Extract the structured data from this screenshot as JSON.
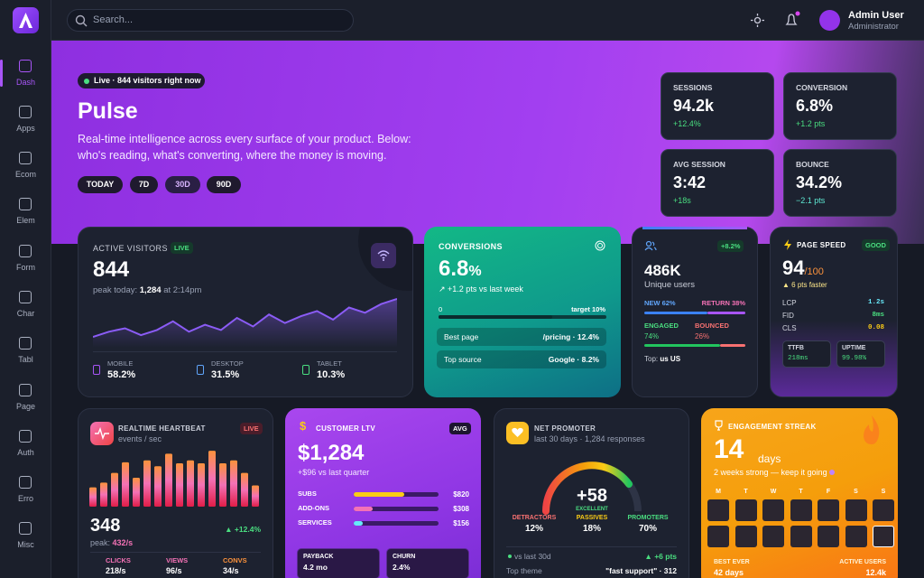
{
  "search": {
    "placeholder": "Search..."
  },
  "user": {
    "name": "Admin User",
    "role": "Administrator"
  },
  "nav": [
    "Dash",
    "Apps",
    "Ecom",
    "Elem",
    "Form",
    "Char",
    "Tabl",
    "Page",
    "Auth",
    "Erro",
    "Misc"
  ],
  "hero": {
    "live": "Live · 844 visitors right now",
    "title": "Pulse",
    "description": "Real-time intelligence across every surface of your product. Below: who's reading, what's converting, where the money is moving.",
    "ranges": [
      "TODAY",
      "7D",
      "30D",
      "90D"
    ]
  },
  "stats": [
    {
      "label": "SESSIONS",
      "value": "94.2k",
      "delta": "+12.4%"
    },
    {
      "label": "CONVERSION",
      "value": "6.8%",
      "delta": "+1.2 pts"
    },
    {
      "label": "AVG SESSION",
      "value": "3:42",
      "delta": "+18s"
    },
    {
      "label": "BOUNCE",
      "value": "34.2%",
      "delta": "−2.1 pts"
    }
  ],
  "active_visitors": {
    "title": "ACTIVE VISITORS",
    "badge": "LIVE",
    "value": "844",
    "peak_label": "peak today:",
    "peak": "1,284",
    "peak_time": "at 2:14pm",
    "trend": [
      8,
      11,
      13,
      9,
      12,
      17,
      11,
      15,
      12,
      19,
      14,
      21,
      16,
      20,
      23,
      18,
      25,
      22,
      27,
      30
    ],
    "devices": [
      {
        "name": "MOBILE",
        "value": "58.2%"
      },
      {
        "name": "DESKTOP",
        "value": "31.5%"
      },
      {
        "name": "TABLET",
        "value": "10.3%"
      }
    ]
  },
  "conversions": {
    "title": "CONVERSIONS",
    "value": "6.8",
    "unit": "%",
    "delta": "↗ +1.2 pts vs last week",
    "scale_min": "0",
    "target": "target 10%",
    "rows": [
      {
        "label": "Best page",
        "value": "/pricing · 12.4%"
      },
      {
        "label": "Top source",
        "value": "Google · 8.2%"
      }
    ]
  },
  "users": {
    "badge": "+8.2%",
    "value": "486K",
    "label": "Unique users",
    "new": "NEW 62%",
    "return": "RETURN 38%",
    "engaged_label": "ENGAGED",
    "engaged": "74%",
    "bounced_label": "BOUNCED",
    "bounced": "26%",
    "top_label": "Top:",
    "top": "us US"
  },
  "page_speed": {
    "title": "PAGE SPEED",
    "badge": "GOOD",
    "score": "94",
    "max": "/100",
    "delta": "▲ 6 pts faster",
    "metrics": [
      {
        "name": "LCP",
        "value": "1.2s"
      },
      {
        "name": "FID",
        "value": "8ms"
      },
      {
        "name": "CLS",
        "value": "0.08"
      }
    ],
    "tiles": [
      {
        "name": "TTFB",
        "value": "218ms"
      },
      {
        "name": "UPTIME",
        "value": "99.98%"
      }
    ]
  },
  "heartbeat": {
    "title": "REALTIME HEARTBEAT",
    "subtitle": "events / sec",
    "badge": "LIVE",
    "bars": [
      20,
      25,
      35,
      46,
      30,
      48,
      42,
      55,
      45,
      48,
      45,
      58,
      45,
      48,
      35,
      22
    ],
    "value": "348",
    "delta": "▲ +12.4%",
    "peak_label": "peak:",
    "peak": "432/s",
    "stats": [
      {
        "name": "CLICKS",
        "value": "218/s"
      },
      {
        "name": "VIEWS",
        "value": "96/s"
      },
      {
        "name": "CONVS",
        "value": "34/s"
      }
    ]
  },
  "ltv": {
    "title": "CUSTOMER LTV",
    "badge": "AVG",
    "value": "$1,284",
    "delta": "+$96 vs last quarter",
    "rows": [
      {
        "name": "SUBS",
        "value": "$820"
      },
      {
        "name": "ADD-ONS",
        "value": "$308"
      },
      {
        "name": "SERVICES",
        "value": "$156"
      }
    ],
    "tiles": [
      {
        "name": "PAYBACK",
        "value": "4.2 mo"
      },
      {
        "name": "CHURN",
        "value": "2.4%"
      }
    ]
  },
  "nps": {
    "title": "NET PROMOTER",
    "subtitle": "last 30 days · 1,284 responses",
    "score": "+58",
    "grade": "EXCELLENT",
    "groups": [
      {
        "name": "DETRACTORS",
        "value": "12%"
      },
      {
        "name": "PASSIVES",
        "value": "18%"
      },
      {
        "name": "PROMOTERS",
        "value": "70%"
      }
    ],
    "compare": "vs last 30d",
    "compare_delta": "▲ +6 pts",
    "theme_label": "Top theme",
    "theme": "\"fast support\" · 312"
  },
  "streak": {
    "title": "ENGAGEMENT STREAK",
    "value": "14",
    "unit": "days",
    "caption": "2 weeks strong — keep it going",
    "weekdays": [
      "M",
      "T",
      "W",
      "T",
      "F",
      "S",
      "S"
    ],
    "best_label": "BEST EVER",
    "best": "42 days",
    "active_label": "ACTIVE USERS",
    "active": "12.4k"
  }
}
